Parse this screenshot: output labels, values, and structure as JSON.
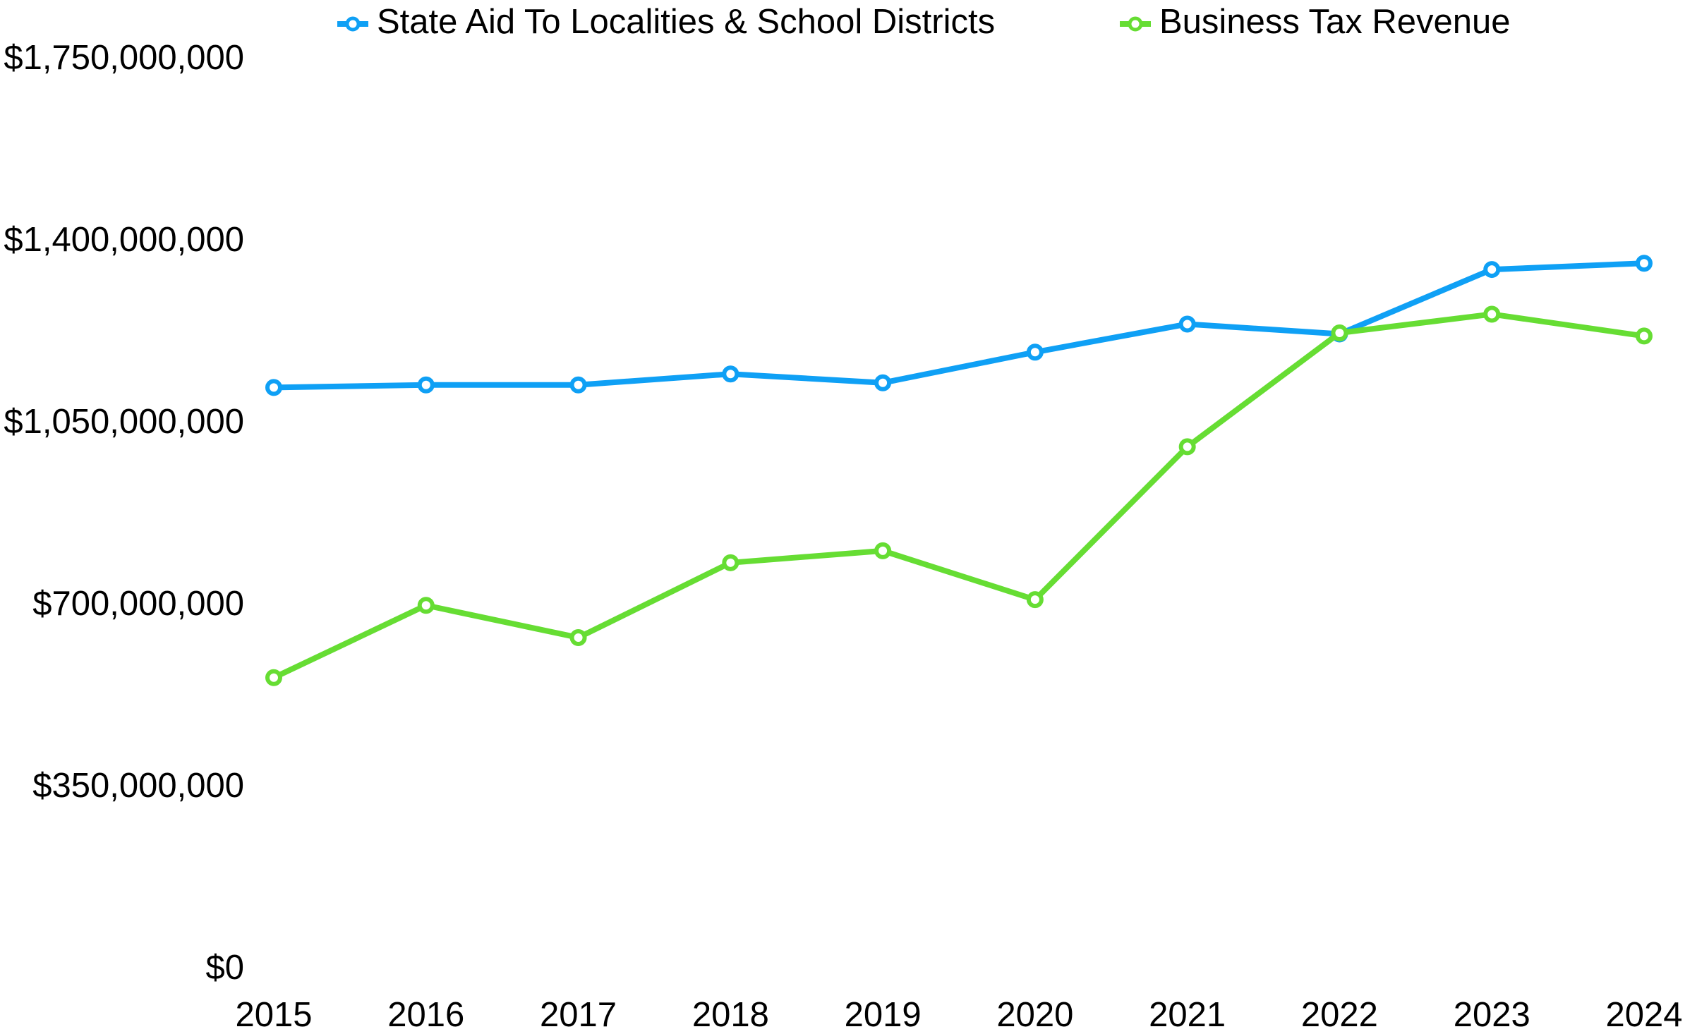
{
  "chart_data": {
    "type": "line",
    "categories": [
      "2015",
      "2016",
      "2017",
      "2018",
      "2019",
      "2020",
      "2021",
      "2022",
      "2023",
      "2024"
    ],
    "series": [
      {
        "name": "State Aid To Localities & School Districts",
        "color": "#0fa0f5",
        "values": [
          1120000000,
          1125000000,
          1125000000,
          1146000000,
          1129000000,
          1188000000,
          1242000000,
          1223000000,
          1347000000,
          1359000000
        ]
      },
      {
        "name": "Business Tax Revenue",
        "color": "#66dd33",
        "values": [
          562000000,
          701000000,
          639000000,
          783000000,
          806000000,
          712000000,
          1006000000,
          1225000000,
          1261000000,
          1219000000
        ]
      }
    ],
    "ylim": [
      0,
      1750000000
    ],
    "yticks": [
      {
        "value": 0,
        "label": "$0"
      },
      {
        "value": 350000000,
        "label": "$350,000,000"
      },
      {
        "value": 700000000,
        "label": "$700,000,000"
      },
      {
        "value": 1050000000,
        "label": "$1,050,000,000"
      },
      {
        "value": 1400000000,
        "label": "$1,400,000,000"
      },
      {
        "value": 1750000000,
        "label": "$1,750,000,000"
      }
    ],
    "grid": false,
    "legend": "top"
  }
}
